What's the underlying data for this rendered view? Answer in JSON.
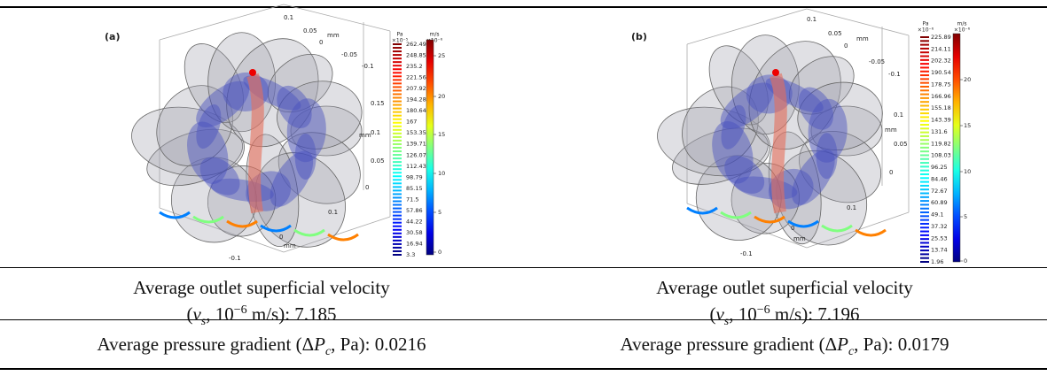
{
  "figures": [
    {
      "label": "(a)",
      "axis_labels": [
        "0.1",
        "0.05",
        "mm",
        "0",
        "-0.05",
        "-0.1",
        "0.15",
        "0.1",
        "mm",
        "0.05",
        "0",
        "0.1",
        "0",
        "mm",
        "-0.1"
      ],
      "pressure_colorbar": {
        "unit": "Pa",
        "scale": "×10⁻⁵",
        "ticks": [
          "262.49",
          "248.85",
          "235.2",
          "221.56",
          "207.92",
          "194.28",
          "180.64",
          "167",
          "153.35",
          "139.71",
          "126.07",
          "112.43",
          "98.79",
          "85.15",
          "71.5",
          "57.86",
          "44.22",
          "30.58",
          "16.94",
          "3.3"
        ]
      },
      "velocity_colorbar": {
        "unit": "m/s",
        "scale": "×10⁻⁶",
        "ticks": [
          "25",
          "20",
          "15",
          "10",
          "5",
          "0"
        ]
      }
    },
    {
      "label": "(b)",
      "axis_labels": [
        "0.1",
        "0.05",
        "mm",
        "0",
        "-0.05",
        "-0.1",
        "0.1",
        "mm",
        "0.05",
        "0",
        "0.1",
        "0",
        "mm",
        "-0.1"
      ],
      "pressure_colorbar": {
        "unit": "Pa",
        "scale": "×10⁻⁶",
        "ticks": [
          "225.89",
          "214.11",
          "202.32",
          "190.54",
          "178.75",
          "166.96",
          "155.18",
          "143.39",
          "131.6",
          "119.82",
          "108.03",
          "96.25",
          "84.46",
          "72.67",
          "60.89",
          "49.1",
          "37.32",
          "25.53",
          "13.74",
          "1.96"
        ]
      },
      "velocity_colorbar": {
        "unit": "m/s",
        "scale": "×10⁻⁶",
        "ticks": [
          "20",
          "15",
          "10",
          "5",
          "0"
        ]
      }
    }
  ],
  "table": {
    "rows": [
      [
        {
          "lines": [
            [
              {
                "text": "Average outlet superficial velocity"
              }
            ],
            [
              {
                "text": "("
              },
              {
                "text": "v",
                "style": "i"
              },
              {
                "text": "s",
                "style": "sub"
              },
              {
                "text": ", 10"
              },
              {
                "text": "−6",
                "style": "sup"
              },
              {
                "text": " m/s): "
              },
              {
                "text": "7.185"
              }
            ]
          ]
        },
        {
          "lines": [
            [
              {
                "text": "Average outlet superficial velocity"
              }
            ],
            [
              {
                "text": "("
              },
              {
                "text": "v",
                "style": "i"
              },
              {
                "text": "s",
                "style": "sub"
              },
              {
                "text": ", 10"
              },
              {
                "text": "−6",
                "style": "sup"
              },
              {
                "text": " m/s): "
              },
              {
                "text": "7.196"
              }
            ]
          ]
        }
      ],
      [
        {
          "lines": [
            [
              {
                "text": "Average pressure gradient ("
              },
              {
                "text": "Δ"
              },
              {
                "text": "P",
                "style": "i"
              },
              {
                "text": "c",
                "style": "sub"
              },
              {
                "text": ", Pa): "
              },
              {
                "text": "0.0216"
              }
            ]
          ]
        },
        {
          "lines": [
            [
              {
                "text": "Average pressure gradient ("
              },
              {
                "text": "Δ"
              },
              {
                "text": "P",
                "style": "i"
              },
              {
                "text": "c",
                "style": "sub"
              },
              {
                "text": ", Pa): "
              },
              {
                "text": "0.0179"
              }
            ]
          ]
        }
      ]
    ]
  }
}
